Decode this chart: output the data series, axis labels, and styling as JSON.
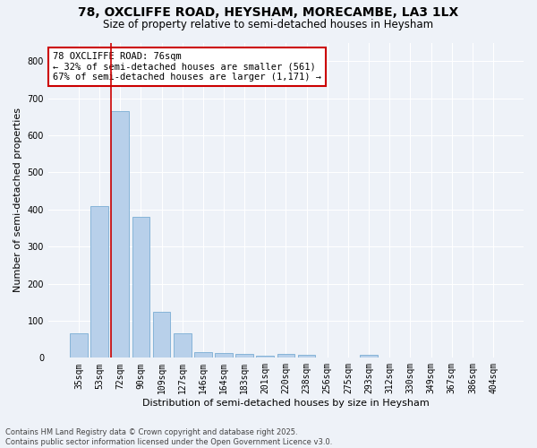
{
  "title_line1": "78, OXCLIFFE ROAD, HEYSHAM, MORECAMBE, LA3 1LX",
  "title_line2": "Size of property relative to semi-detached houses in Heysham",
  "xlabel": "Distribution of semi-detached houses by size in Heysham",
  "ylabel": "Number of semi-detached properties",
  "categories": [
    "35sqm",
    "53sqm",
    "72sqm",
    "90sqm",
    "109sqm",
    "127sqm",
    "146sqm",
    "164sqm",
    "183sqm",
    "201sqm",
    "220sqm",
    "238sqm",
    "256sqm",
    "275sqm",
    "293sqm",
    "312sqm",
    "330sqm",
    "349sqm",
    "367sqm",
    "386sqm",
    "404sqm"
  ],
  "values": [
    65,
    408,
    665,
    380,
    125,
    65,
    15,
    13,
    10,
    5,
    10,
    8,
    0,
    0,
    7,
    0,
    0,
    0,
    0,
    0,
    0
  ],
  "bar_color": "#b8d0ea",
  "bar_edge_color": "#7aadd4",
  "highlight_line_color": "#cc0000",
  "annotation_text": "78 OXCLIFFE ROAD: 76sqm\n← 32% of semi-detached houses are smaller (561)\n67% of semi-detached houses are larger (1,171) →",
  "annotation_box_color": "#ffffff",
  "annotation_box_edge_color": "#cc0000",
  "ylim": [
    0,
    850
  ],
  "yticks": [
    0,
    100,
    200,
    300,
    400,
    500,
    600,
    700,
    800
  ],
  "footnote": "Contains HM Land Registry data © Crown copyright and database right 2025.\nContains public sector information licensed under the Open Government Licence v3.0.",
  "background_color": "#eef2f8",
  "grid_color": "#ffffff",
  "title_fontsize": 10,
  "subtitle_fontsize": 8.5,
  "ylabel_fontsize": 8,
  "xlabel_fontsize": 8,
  "tick_fontsize": 7,
  "annotation_fontsize": 7.5,
  "footnote_fontsize": 6
}
